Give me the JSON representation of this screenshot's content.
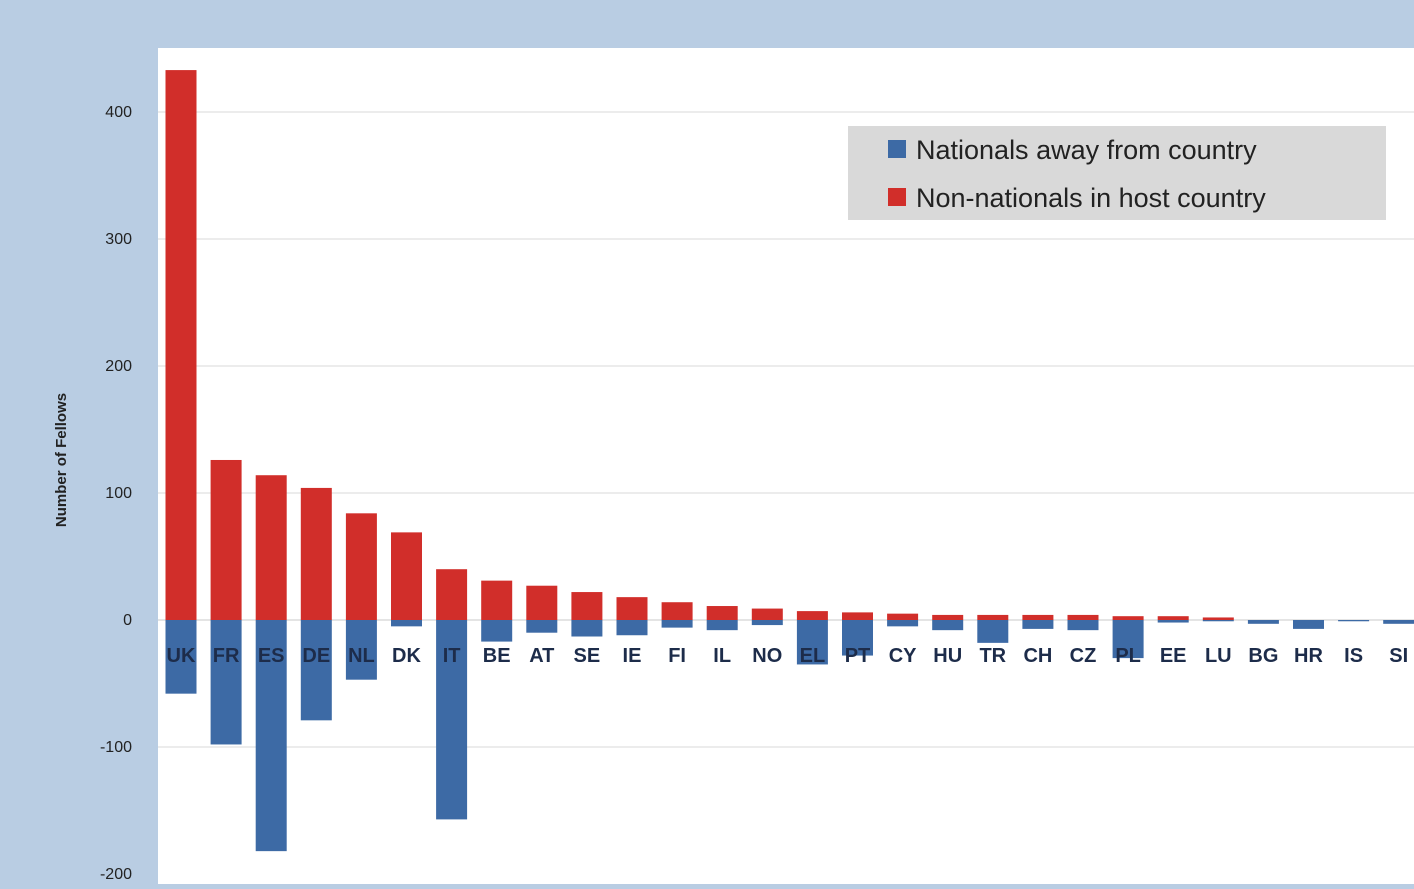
{
  "chart_data": {
    "type": "bar",
    "title": "",
    "xlabel": "",
    "ylabel": "Number of Fellows",
    "ylim": [
      -200,
      440
    ],
    "yticks": [
      -200,
      -100,
      0,
      100,
      200,
      300,
      400
    ],
    "grid": true,
    "legend_position": "top-right",
    "categories": [
      "UK",
      "FR",
      "ES",
      "DE",
      "NL",
      "DK",
      "IT",
      "BE",
      "AT",
      "SE",
      "IE",
      "FI",
      "IL",
      "NO",
      "EL",
      "PT",
      "CY",
      "HU",
      "TR",
      "CH",
      "CZ",
      "PL",
      "EE",
      "LU",
      "BG",
      "HR",
      "IS",
      "SI"
    ],
    "series": [
      {
        "name": "Nationals away from country",
        "color": "#3d6aa5",
        "values": [
          -58,
          -98,
          -182,
          -79,
          -47,
          -5,
          -157,
          -17,
          -10,
          -13,
          -12,
          -6,
          -8,
          -4,
          -35,
          -28,
          -5,
          -8,
          -18,
          -7,
          -8,
          -30,
          -2,
          -1,
          -3,
          -7,
          -1,
          -3
        ]
      },
      {
        "name": "Non-nationals in host country",
        "color": "#d12e2a",
        "values": [
          433,
          126,
          114,
          104,
          84,
          69,
          40,
          31,
          27,
          22,
          18,
          14,
          11,
          9,
          7,
          6,
          5,
          4,
          4,
          4,
          4,
          3,
          3,
          2,
          0,
          0,
          0,
          0
        ]
      }
    ]
  }
}
